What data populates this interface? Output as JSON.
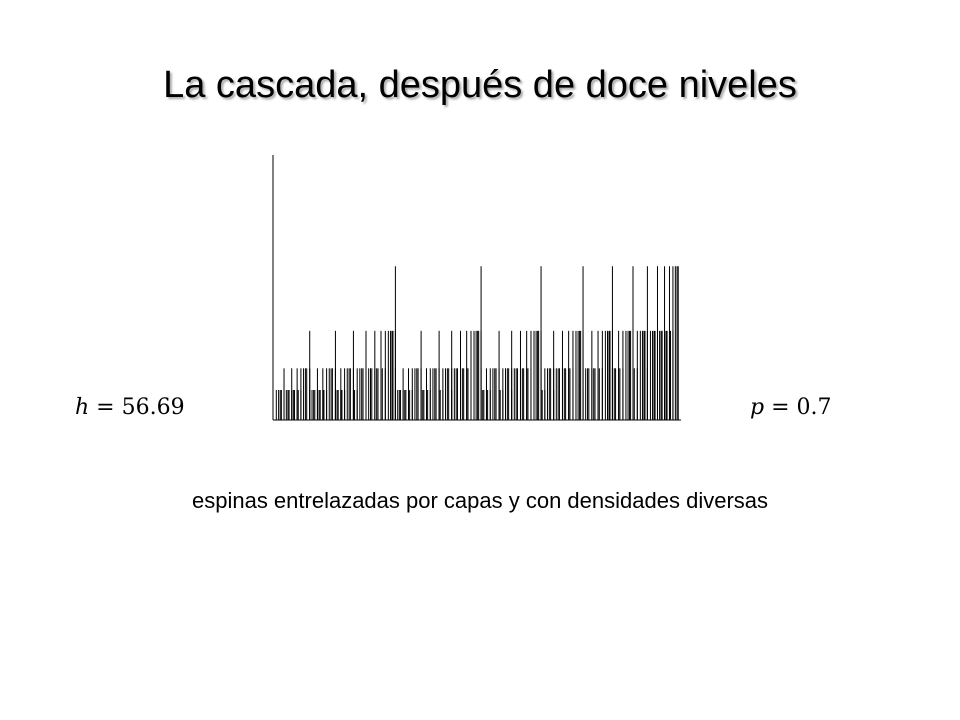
{
  "slide": {
    "title": "La cascada, después de doce niveles",
    "h_var": "h",
    "h_value": "56.69",
    "p_var": "p",
    "p_value": "0.7",
    "equals": "=",
    "caption": "espinas entrelazadas por capas y con densidades diversas",
    "colors": {
      "background": "#ffffff",
      "text": "#000000",
      "spikes": "#000000"
    }
  },
  "cascade": {
    "levels": 12,
    "p": 0.7,
    "h": 56.69,
    "description_type": "multiplicative cascade spike plot"
  }
}
